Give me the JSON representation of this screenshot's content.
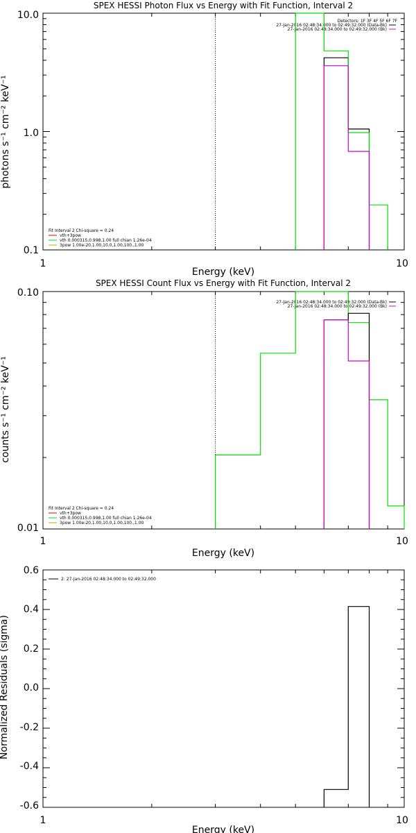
{
  "colors": {
    "black": "#000000",
    "green": "#00e000",
    "magenta": "#d000d0",
    "red": "#e00000",
    "orange": "#d0a000"
  },
  "chart_data": [
    {
      "type": "line",
      "step": true,
      "title": "SPEX HESSI Photon Flux vs Energy with Fit Function, Interval 2",
      "xlabel": "Energy (keV)",
      "ylabel": "photons s⁻¹ cm⁻² keV⁻¹",
      "xscale": "log",
      "yscale": "log",
      "xlim": [
        1,
        10
      ],
      "ylim": [
        0.1,
        10
      ],
      "xticklabels": [
        "1",
        "10"
      ],
      "yticklabels": [
        "0.1",
        "1.0",
        "10.0"
      ],
      "legend_header": "Detectors: 1F 3F 4F 5F 6F 7F",
      "legend": [
        {
          "label": "27-Jan-2016 02:48:34.000 to 02:49:32.000 (Data-Bk)",
          "color": "#000000"
        },
        {
          "label": "27-Jan-2016 02:48:34.000 to 02:49:32.000 (Bk)",
          "color": "#d000d0"
        }
      ],
      "fit_info": [
        {
          "label": "Fit Interval 2   Chi-square = 0.24",
          "color": "#000000"
        },
        {
          "label": "vth+3pow",
          "color": "#e00000"
        },
        {
          "label": "vth 0.000315,0.998,1.00  full chian 1.26e-04",
          "color": "#00e000"
        },
        {
          "label": "3pow 1.00e-20,1.00,10.0,1.00,100.,1.00",
          "color": "#d0a000"
        }
      ],
      "vline_x": 3,
      "series": [
        {
          "color": "#000000",
          "x": [
            6,
            7,
            7,
            8
          ],
          "y": [
            4.2,
            4.2,
            1.05,
            1.05
          ],
          "close_to_floor": true
        },
        {
          "color": "#00e000",
          "x": [
            5,
            6,
            6,
            7,
            7,
            8,
            8,
            9
          ],
          "y": [
            10,
            10,
            4.8,
            4.8,
            0.98,
            0.98,
            0.24,
            0.24
          ],
          "close_to_floor": true
        },
        {
          "color": "#d000d0",
          "x": [
            6,
            7,
            7,
            8
          ],
          "y": [
            3.6,
            3.6,
            0.68,
            0.68
          ],
          "close_to_floor": true
        }
      ]
    },
    {
      "type": "line",
      "step": true,
      "title": "SPEX HESSI Count Flux vs Energy with Fit Function, Interval 2",
      "xlabel": "Energy (keV)",
      "ylabel": "counts s⁻¹ cm⁻² keV⁻¹",
      "xscale": "log",
      "yscale": "log",
      "xlim": [
        1,
        10
      ],
      "ylim": [
        0.01,
        0.1
      ],
      "xticklabels": [
        "1",
        "10"
      ],
      "yticklabels": [
        "0.01",
        "0.10"
      ],
      "legend": [
        {
          "label": "27-Jan-2016 02:48:34.000 to 02:49:32.000 (Data-Bk)",
          "color": "#000000"
        },
        {
          "label": "27-Jan-2016 02:48:34.000 to 02:49:32.000 (Bk)",
          "color": "#d000d0"
        }
      ],
      "fit_info": [
        {
          "label": "Fit Interval 2   Chi-square = 0.24",
          "color": "#000000"
        },
        {
          "label": "vth+3pow",
          "color": "#e00000"
        },
        {
          "label": "vth 0.000315,0.998,1.00  full chian 1.26e-04",
          "color": "#00e000"
        },
        {
          "label": "3pow 1.00e-20,1.00,10.0,1.00,100.,1.00",
          "color": "#d0a000"
        }
      ],
      "vline_x": 3,
      "series": [
        {
          "color": "#00e000",
          "x": [
            3,
            3,
            4,
            4,
            5,
            5,
            6,
            6,
            7,
            7,
            8,
            8,
            9,
            9,
            10,
            10
          ],
          "y": [
            0.01,
            0.0205,
            0.0205,
            0.055,
            0.055,
            0.1,
            0.1,
            0.1,
            0.1,
            0.074,
            0.074,
            0.035,
            0.035,
            0.0125,
            0.0125,
            0.01
          ],
          "close_to_floor": false
        },
        {
          "color": "#000000",
          "x": [
            6,
            7,
            7,
            8
          ],
          "y": [
            0.076,
            0.076,
            0.081,
            0.081
          ],
          "close_to_floor": true
        },
        {
          "color": "#d000d0",
          "x": [
            6,
            7,
            7,
            8
          ],
          "y": [
            0.076,
            0.076,
            0.051,
            0.051
          ],
          "close_to_floor": true
        }
      ]
    },
    {
      "type": "line",
      "step": true,
      "title": "",
      "xlabel": "Energy (keV)",
      "ylabel": "Normalized Residuals (sigma)",
      "xscale": "log",
      "yscale": "linear",
      "xlim": [
        1,
        10
      ],
      "ylim": [
        -0.6,
        0.6
      ],
      "xticklabels": [
        "1",
        "10"
      ],
      "yticks": [
        -0.6,
        -0.4,
        -0.2,
        0.0,
        0.2,
        0.4,
        0.6
      ],
      "yticklabels": [
        "-0.6",
        "-0.4",
        "-0.2",
        "0.0",
        "0.2",
        "0.4",
        "0.6"
      ],
      "legend": [
        {
          "label": "2: 27-Jan-2016 02:48:34.000 to 02:49:32.000",
          "color": "#000000"
        }
      ],
      "series": [
        {
          "color": "#000000",
          "x": [
            6,
            6,
            7,
            7,
            8,
            8
          ],
          "y": [
            -0.6,
            -0.51,
            -0.51,
            0.415,
            0.415,
            -0.6
          ],
          "close_to_floor": false
        }
      ]
    }
  ]
}
